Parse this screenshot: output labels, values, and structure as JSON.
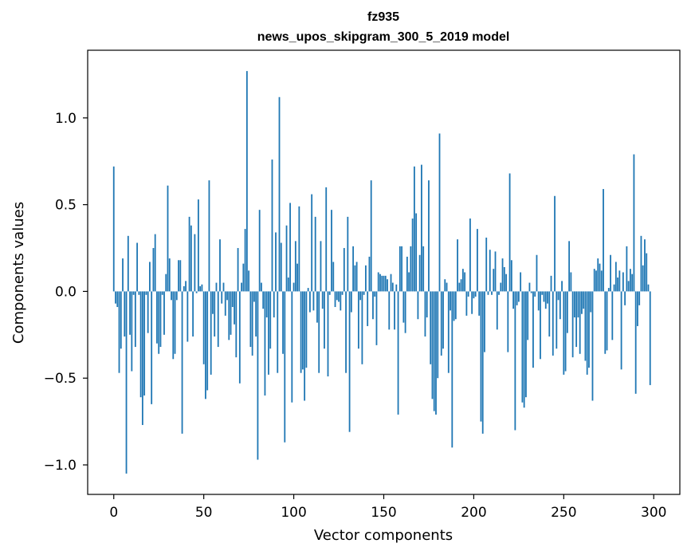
{
  "chart_data": {
    "type": "bar",
    "title": "fz935",
    "subtitle": "news_upos_skipgram_300_5_2019 model",
    "xlabel": "Vector components",
    "ylabel": "Components values",
    "xlim": [
      -14.5,
      314.5
    ],
    "ylim": [
      -1.17,
      1.39
    ],
    "x_ticks": [
      0,
      50,
      100,
      150,
      200,
      250,
      300
    ],
    "x_tick_labels": [
      "0",
      "50",
      "100",
      "150",
      "200",
      "250",
      "300"
    ],
    "y_ticks": [
      -1.0,
      -0.5,
      0.0,
      0.5,
      1.0
    ],
    "y_tick_labels": [
      "−1.0",
      "−0.5",
      "0.0",
      "0.5",
      "1.0"
    ],
    "bar_color": "#1f77b4",
    "values": [
      0.72,
      -0.07,
      -0.09,
      -0.47,
      -0.33,
      0.19,
      -0.26,
      -1.05,
      0.32,
      -0.25,
      -0.46,
      -0.02,
      -0.32,
      0.28,
      -0.02,
      -0.61,
      -0.77,
      -0.6,
      -0.02,
      -0.24,
      0.17,
      -0.65,
      0.25,
      0.33,
      -0.3,
      -0.36,
      -0.32,
      -0.02,
      -0.25,
      0.1,
      0.61,
      0.19,
      -0.05,
      -0.39,
      -0.36,
      -0.05,
      0.18,
      0.18,
      -0.82,
      0.03,
      0.06,
      -0.29,
      0.43,
      0.38,
      -0.26,
      0.33,
      -0.01,
      0.53,
      0.03,
      0.04,
      -0.42,
      -0.62,
      -0.57,
      0.64,
      -0.48,
      -0.13,
      -0.26,
      0.05,
      -0.32,
      0.3,
      -0.07,
      0.05,
      -0.14,
      -0.05,
      -0.28,
      -0.25,
      -0.09,
      -0.19,
      -0.38,
      0.25,
      -0.53,
      0.05,
      0.16,
      0.36,
      1.27,
      0.12,
      -0.32,
      -0.37,
      -0.06,
      -0.26,
      -0.97,
      0.47,
      0.05,
      -0.1,
      -0.6,
      -0.15,
      -0.48,
      -0.33,
      0.76,
      -0.15,
      0.34,
      -0.47,
      1.12,
      0.28,
      -0.36,
      -0.87,
      0.38,
      0.08,
      0.51,
      -0.64,
      0.05,
      0.29,
      0.16,
      0.49,
      -0.47,
      -0.45,
      -0.63,
      -0.44,
      0.02,
      -0.12,
      0.56,
      -0.11,
      0.43,
      -0.18,
      -0.47,
      0.29,
      -0.1,
      -0.33,
      0.6,
      -0.49,
      -0.02,
      0.47,
      0.17,
      -0.09,
      -0.05,
      -0.06,
      -0.11,
      -0.02,
      0.25,
      -0.47,
      0.43,
      -0.81,
      -0.12,
      0.26,
      0.15,
      0.17,
      -0.33,
      -0.05,
      -0.42,
      -0.02,
      0.15,
      -0.2,
      0.2,
      0.64,
      -0.16,
      -0.03,
      -0.31,
      0.11,
      0.1,
      0.09,
      0.09,
      0.09,
      0.07,
      -0.22,
      0.1,
      0.05,
      -0.22,
      0.04,
      -0.71,
      0.26,
      0.26,
      -0.18,
      -0.24,
      0.2,
      0.11,
      0.26,
      0.42,
      0.72,
      0.45,
      -0.16,
      0.21,
      0.73,
      0.26,
      -0.26,
      -0.15,
      0.64,
      -0.42,
      -0.62,
      -0.69,
      -0.71,
      -0.5,
      0.91,
      -0.37,
      -0.33,
      0.07,
      0.05,
      -0.47,
      -0.11,
      -0.9,
      -0.17,
      -0.16,
      0.3,
      0.05,
      0.07,
      0.13,
      0.11,
      -0.14,
      -0.03,
      0.42,
      -0.13,
      -0.04,
      -0.03,
      0.36,
      -0.14,
      -0.75,
      -0.82,
      -0.35,
      0.31,
      -0.02,
      0.24,
      -0.02,
      0.13,
      0.23,
      -0.22,
      -0.02,
      0.05,
      0.19,
      0.14,
      0.1,
      -0.35,
      0.68,
      0.18,
      -0.1,
      -0.8,
      -0.08,
      -0.06,
      0.11,
      -0.64,
      -0.67,
      -0.61,
      -0.28,
      0.05,
      -0.01,
      -0.44,
      -0.03,
      0.21,
      -0.11,
      -0.39,
      -0.02,
      -0.06,
      -0.1,
      -0.07,
      -0.26,
      0.09,
      -0.37,
      0.55,
      -0.33,
      -0.05,
      -0.16,
      0.06,
      -0.48,
      -0.46,
      -0.24,
      0.29,
      0.11,
      -0.38,
      -0.15,
      -0.32,
      -0.15,
      -0.36,
      -0.13,
      -0.1,
      -0.4,
      -0.48,
      -0.44,
      -0.12,
      -0.63,
      0.13,
      0.12,
      0.19,
      0.16,
      0.12,
      0.59,
      -0.36,
      -0.34,
      0.02,
      0.21,
      -0.28,
      0.04,
      0.17,
      0.08,
      0.12,
      -0.45,
      0.11,
      -0.08,
      0.26,
      0.06,
      0.13,
      0.1,
      0.79,
      -0.59,
      -0.2,
      -0.08,
      0.32,
      0.15,
      0.3,
      0.22,
      0.04,
      -0.54
    ]
  }
}
